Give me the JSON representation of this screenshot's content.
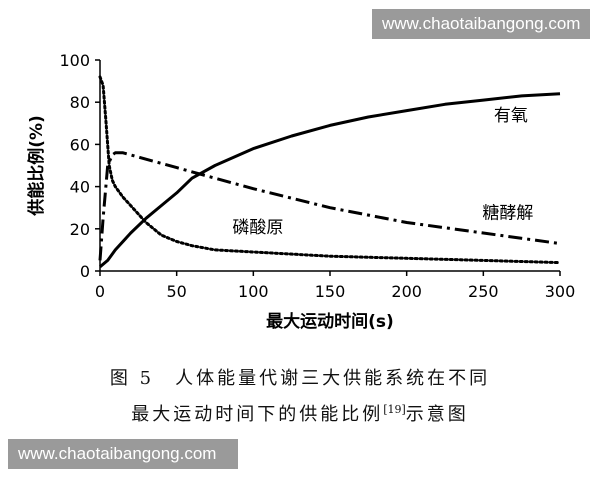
{
  "watermark_top": "www.chaotaibangong.com",
  "watermark_bottom": "www.chaotaibangong.com",
  "caption_line1": "图 5　人体能量代谢三大供能系统在不同",
  "caption_line2_main": "最大运动时间下的供能比例",
  "caption_line2_ref": "[19]",
  "caption_line2_tail": "示意图",
  "chart_data": {
    "type": "line",
    "xlabel": "最大运动时间(s)",
    "ylabel": "供能比例(%)",
    "xlim": [
      0,
      300
    ],
    "ylim": [
      0,
      100
    ],
    "xticks": [
      0,
      50,
      100,
      150,
      200,
      250,
      300
    ],
    "yticks": [
      0,
      20,
      40,
      60,
      80,
      100
    ],
    "grid": false,
    "series": [
      {
        "name": "有氧",
        "style": "solid",
        "x": [
          0,
          5,
          10,
          20,
          30,
          40,
          50,
          60,
          75,
          100,
          125,
          150,
          175,
          200,
          225,
          250,
          275,
          300
        ],
        "y": [
          2,
          5,
          10,
          18,
          25,
          31,
          37,
          44,
          50,
          58,
          64,
          69,
          73,
          76,
          79,
          81,
          83,
          84
        ]
      },
      {
        "name": "磷酸原",
        "style": "dotted",
        "x": [
          0,
          2,
          4,
          6,
          8,
          10,
          15,
          20,
          30,
          40,
          50,
          60,
          75,
          100,
          150,
          200,
          250,
          300
        ],
        "y": [
          92,
          88,
          70,
          50,
          43,
          40,
          35,
          31,
          23,
          17,
          14,
          12,
          10,
          9,
          7,
          6,
          5,
          4
        ]
      },
      {
        "name": "糖酵解",
        "style": "dashdot",
        "x": [
          0,
          2,
          5,
          8,
          10,
          15,
          20,
          30,
          50,
          75,
          100,
          150,
          200,
          250,
          300
        ],
        "y": [
          5,
          25,
          50,
          55,
          56,
          56,
          55,
          53,
          49,
          44,
          39,
          30,
          23,
          18,
          13
        ]
      }
    ],
    "annotations": [
      {
        "text": "有氧",
        "x": 268,
        "y": 71
      },
      {
        "text": "糖酵解",
        "x": 266,
        "y": 25
      },
      {
        "text": "磷酸原",
        "x": 103,
        "y": 18
      }
    ]
  }
}
